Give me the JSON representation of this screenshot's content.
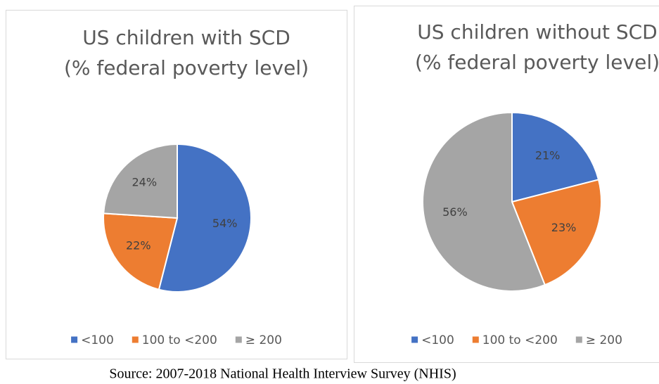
{
  "chart_data": [
    {
      "type": "pie",
      "title": "US children with SCD",
      "subtitle": "(% federal poverty level)",
      "categories": [
        "<100",
        "100 to <200",
        "≥ 200"
      ],
      "values": [
        54,
        22,
        24
      ],
      "value_labels": [
        "54%",
        "22%",
        "24%"
      ],
      "colors": [
        "#4472c4",
        "#ed7d31",
        "#a5a5a5"
      ],
      "legend": "bottom"
    },
    {
      "type": "pie",
      "title": "US children without SCD",
      "subtitle": "(% federal poverty level)",
      "categories": [
        "<100",
        "100 to <200",
        "≥ 200"
      ],
      "values": [
        21,
        23,
        56
      ],
      "value_labels": [
        "21%",
        "23%",
        "56%"
      ],
      "colors": [
        "#4472c4",
        "#ed7d31",
        "#a5a5a5"
      ],
      "legend": "bottom"
    }
  ],
  "source": "Source: 2007-2018 National Health Interview Survey (NHIS)"
}
